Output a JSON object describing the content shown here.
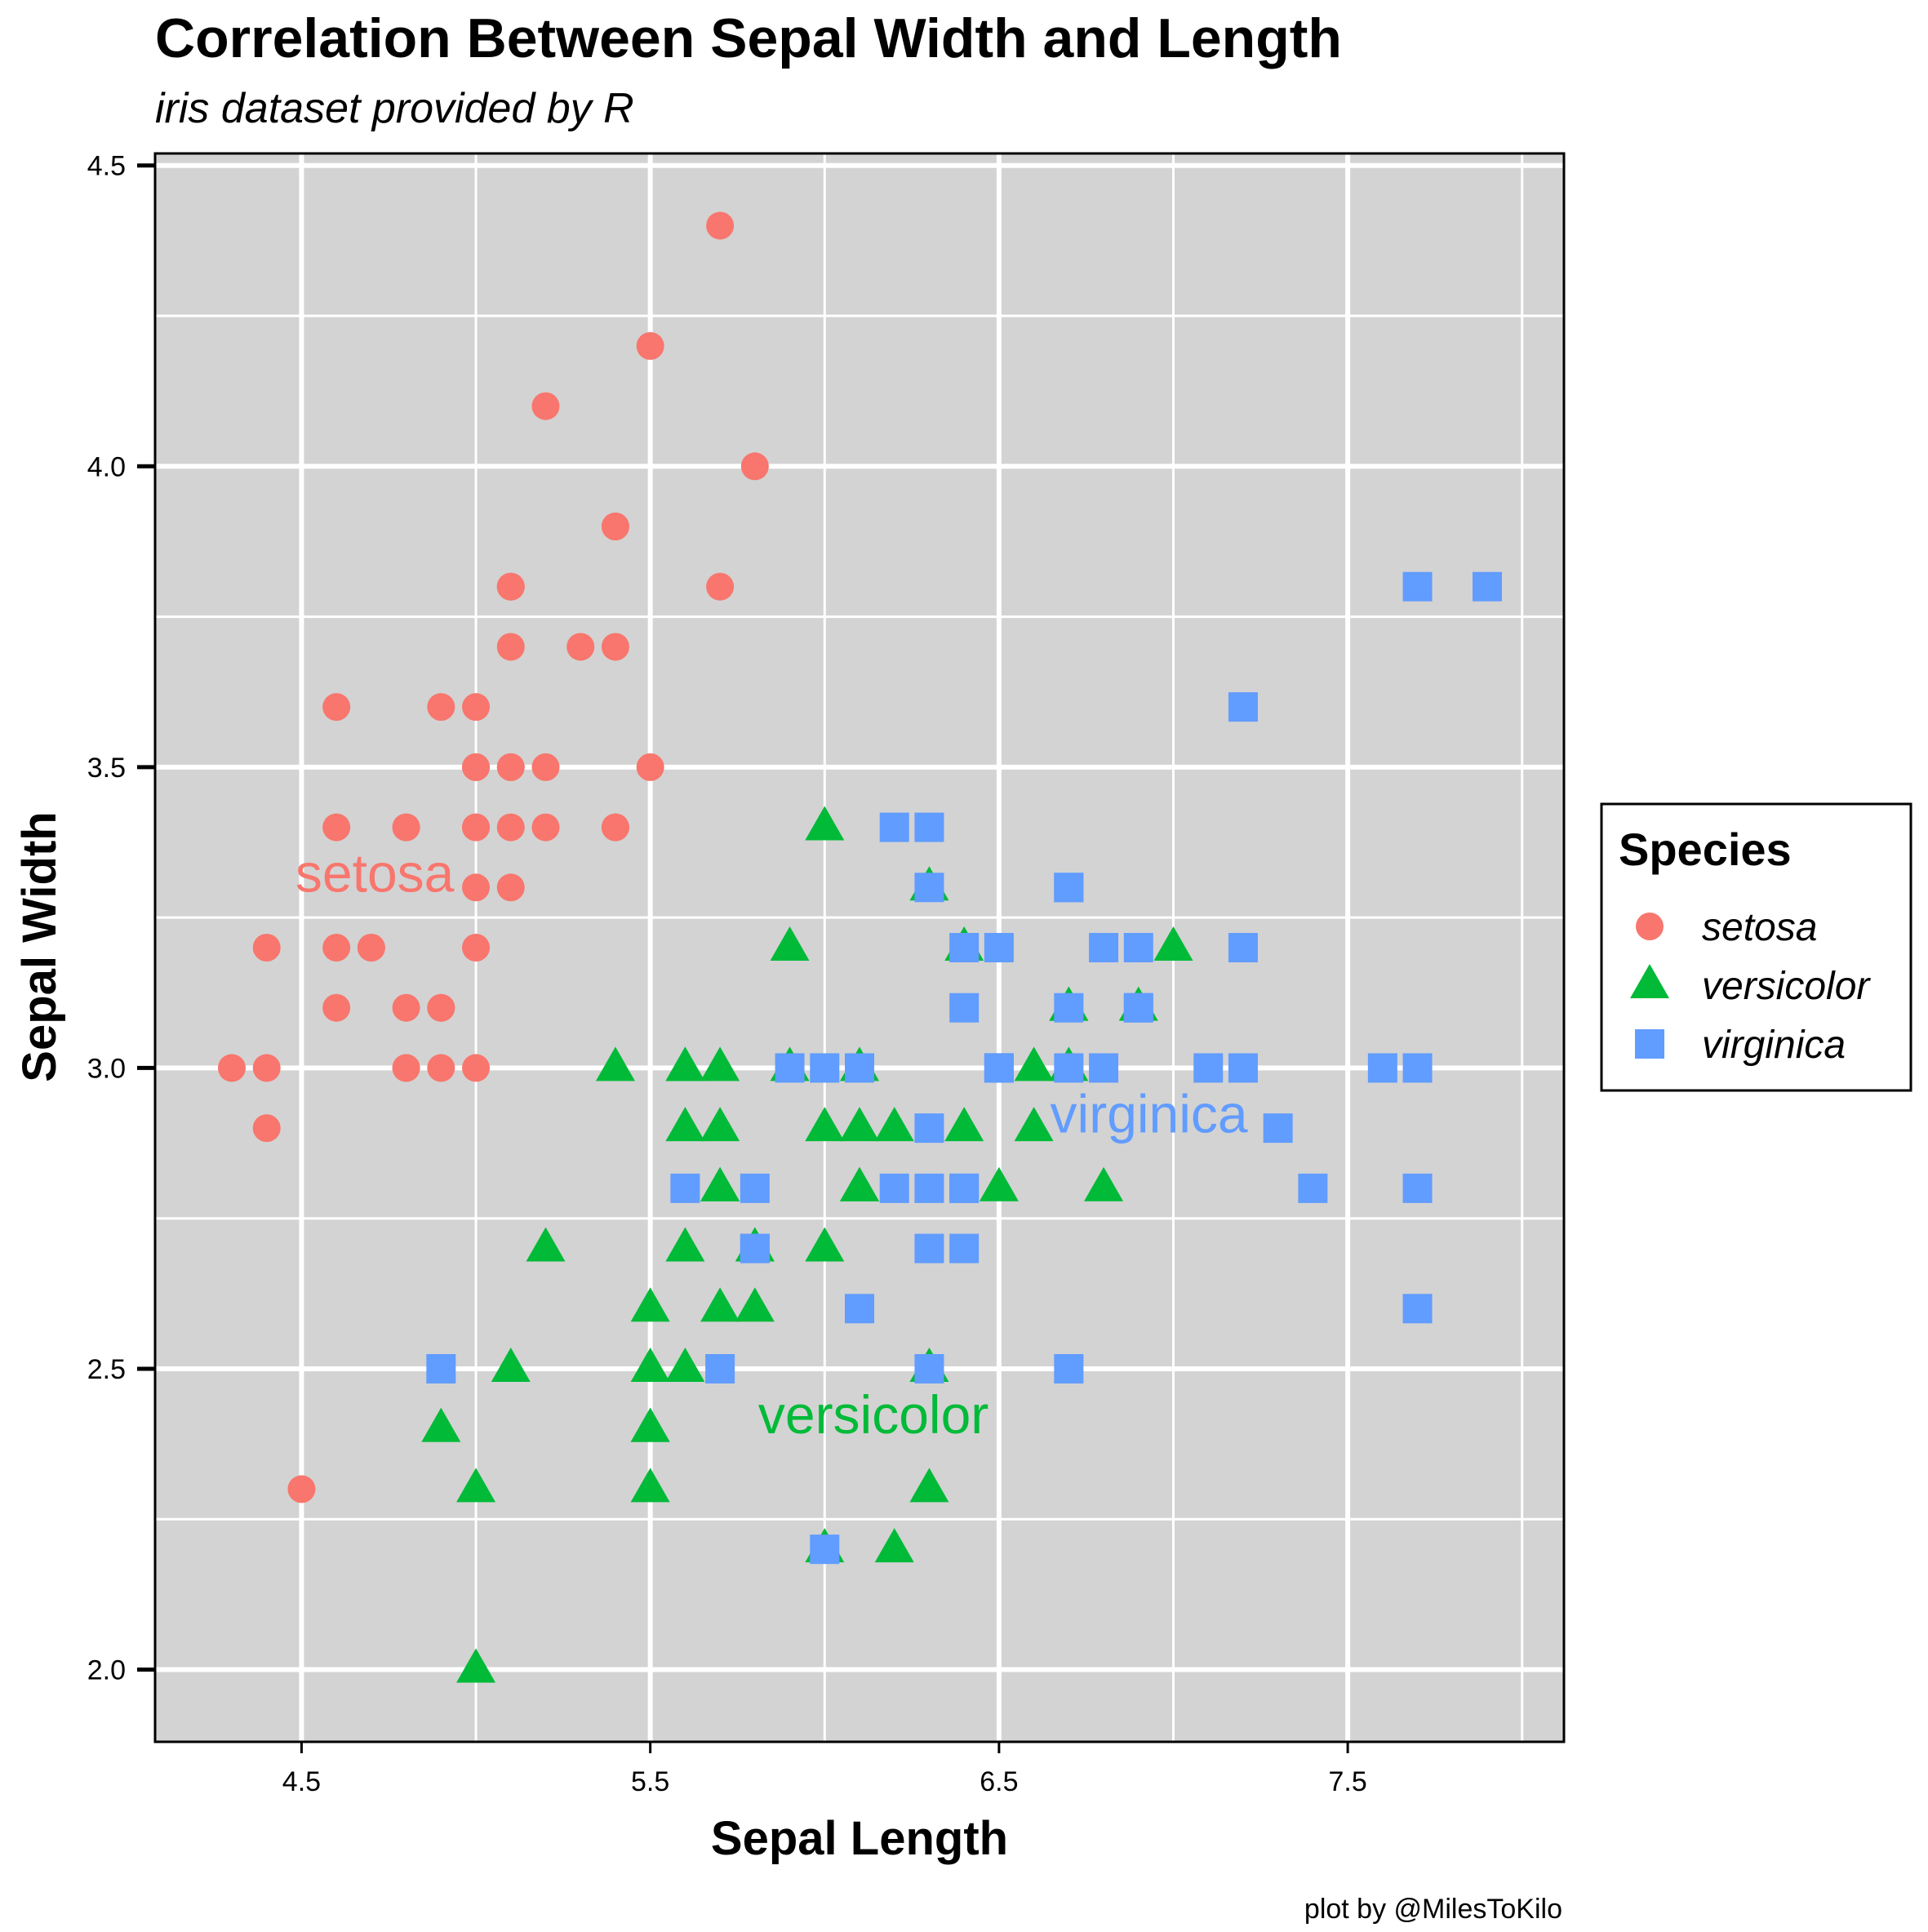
{
  "chart_data": {
    "type": "scatter",
    "title": "Correlation Between Sepal Width and Length",
    "subtitle": "iris dataset provided by R",
    "xlabel": "Sepal Length",
    "ylabel": "Sepal Width",
    "caption": "plot by @MilesToKilo",
    "xlim": [
      4.08,
      8.12
    ],
    "ylim": [
      1.88,
      4.52
    ],
    "xticks": [
      4.5,
      5.5,
      6.5,
      7.5
    ],
    "xtick_labels": [
      "4.5",
      "5.5",
      "6.5",
      "7.5"
    ],
    "yticks": [
      2.0,
      2.5,
      3.0,
      3.5,
      4.0,
      4.5
    ],
    "ytick_labels": [
      "2.0",
      "2.5",
      "3.0",
      "3.5",
      "4.0",
      "4.5"
    ],
    "grid": true,
    "panel_background": "#d3d3d3",
    "grid_color": "#ffffff",
    "legend": {
      "title": "Species",
      "placement": "right",
      "entries": [
        "setosa",
        "versicolor",
        "virginica"
      ]
    },
    "series": [
      {
        "name": "setosa",
        "color": "#f8766d",
        "shape": "circle",
        "label_text": "setosa",
        "label_pos": [
          4.71,
          3.32
        ],
        "points": [
          [
            5.1,
            3.5
          ],
          [
            4.9,
            3.0
          ],
          [
            4.7,
            3.2
          ],
          [
            4.6,
            3.1
          ],
          [
            5.0,
            3.6
          ],
          [
            5.4,
            3.9
          ],
          [
            4.6,
            3.4
          ],
          [
            5.0,
            3.4
          ],
          [
            4.4,
            2.9
          ],
          [
            4.9,
            3.1
          ],
          [
            5.4,
            3.7
          ],
          [
            4.8,
            3.4
          ],
          [
            4.8,
            3.0
          ],
          [
            4.3,
            3.0
          ],
          [
            5.8,
            4.0
          ],
          [
            5.7,
            4.4
          ],
          [
            5.4,
            3.9
          ],
          [
            5.1,
            3.5
          ],
          [
            5.7,
            3.8
          ],
          [
            5.1,
            3.8
          ],
          [
            5.4,
            3.4
          ],
          [
            5.1,
            3.7
          ],
          [
            4.6,
            3.6
          ],
          [
            5.1,
            3.3
          ],
          [
            4.8,
            3.4
          ],
          [
            5.0,
            3.0
          ],
          [
            5.0,
            3.4
          ],
          [
            5.2,
            3.5
          ],
          [
            5.2,
            3.4
          ],
          [
            4.7,
            3.2
          ],
          [
            4.8,
            3.1
          ],
          [
            5.4,
            3.4
          ],
          [
            5.2,
            4.1
          ],
          [
            5.5,
            4.2
          ],
          [
            4.9,
            3.1
          ],
          [
            5.0,
            3.2
          ],
          [
            5.5,
            3.5
          ],
          [
            4.9,
            3.6
          ],
          [
            4.4,
            3.0
          ],
          [
            5.1,
            3.4
          ],
          [
            5.0,
            3.5
          ],
          [
            4.5,
            2.3
          ],
          [
            4.4,
            3.2
          ],
          [
            5.0,
            3.5
          ],
          [
            5.1,
            3.8
          ],
          [
            4.8,
            3.0
          ],
          [
            5.1,
            3.8
          ],
          [
            4.6,
            3.2
          ],
          [
            5.3,
            3.7
          ],
          [
            5.0,
            3.3
          ]
        ]
      },
      {
        "name": "versicolor",
        "color": "#00ba38",
        "shape": "triangle",
        "label_text": "versicolor",
        "label_pos": [
          6.14,
          2.42
        ],
        "points": [
          [
            7.0,
            3.2
          ],
          [
            6.4,
            3.2
          ],
          [
            6.9,
            3.1
          ],
          [
            5.5,
            2.3
          ],
          [
            6.5,
            2.8
          ],
          [
            5.7,
            2.8
          ],
          [
            6.3,
            3.3
          ],
          [
            4.9,
            2.4
          ],
          [
            6.6,
            2.9
          ],
          [
            5.2,
            2.7
          ],
          [
            5.0,
            2.0
          ],
          [
            5.9,
            3.0
          ],
          [
            6.0,
            2.2
          ],
          [
            6.1,
            2.9
          ],
          [
            5.6,
            2.9
          ],
          [
            6.7,
            3.1
          ],
          [
            5.6,
            3.0
          ],
          [
            5.8,
            2.7
          ],
          [
            6.2,
            2.2
          ],
          [
            5.6,
            2.5
          ],
          [
            5.9,
            3.2
          ],
          [
            6.1,
            2.8
          ],
          [
            6.3,
            2.5
          ],
          [
            6.1,
            2.8
          ],
          [
            6.4,
            2.9
          ],
          [
            6.6,
            3.0
          ],
          [
            6.8,
            2.8
          ],
          [
            6.7,
            3.0
          ],
          [
            6.0,
            2.9
          ],
          [
            5.7,
            2.6
          ],
          [
            5.5,
            2.4
          ],
          [
            5.5,
            2.4
          ],
          [
            5.8,
            2.7
          ],
          [
            6.0,
            2.7
          ],
          [
            5.4,
            3.0
          ],
          [
            6.0,
            3.4
          ],
          [
            6.7,
            3.1
          ],
          [
            6.3,
            2.3
          ],
          [
            5.6,
            3.0
          ],
          [
            5.5,
            2.5
          ],
          [
            5.5,
            2.6
          ],
          [
            6.1,
            3.0
          ],
          [
            5.8,
            2.6
          ],
          [
            5.0,
            2.3
          ],
          [
            5.6,
            2.7
          ],
          [
            5.7,
            3.0
          ],
          [
            5.7,
            2.9
          ],
          [
            6.2,
            2.9
          ],
          [
            5.1,
            2.5
          ],
          [
            5.7,
            2.8
          ]
        ]
      },
      {
        "name": "virginica",
        "color": "#619cff",
        "shape": "square",
        "label_text": "virginica",
        "label_pos": [
          6.93,
          2.92
        ],
        "points": [
          [
            6.3,
            3.3
          ],
          [
            5.8,
            2.7
          ],
          [
            7.1,
            3.0
          ],
          [
            6.3,
            2.9
          ],
          [
            6.5,
            3.0
          ],
          [
            7.6,
            3.0
          ],
          [
            4.9,
            2.5
          ],
          [
            7.3,
            2.9
          ],
          [
            6.7,
            2.5
          ],
          [
            7.2,
            3.6
          ],
          [
            6.5,
            3.2
          ],
          [
            6.4,
            2.7
          ],
          [
            6.8,
            3.0
          ],
          [
            5.7,
            2.5
          ],
          [
            5.8,
            2.8
          ],
          [
            6.4,
            3.2
          ],
          [
            6.5,
            3.0
          ],
          [
            7.7,
            3.8
          ],
          [
            7.7,
            2.6
          ],
          [
            6.0,
            2.2
          ],
          [
            6.9,
            3.2
          ],
          [
            5.6,
            2.8
          ],
          [
            7.7,
            2.8
          ],
          [
            6.3,
            2.7
          ],
          [
            6.7,
            3.3
          ],
          [
            7.2,
            3.2
          ],
          [
            6.2,
            2.8
          ],
          [
            6.1,
            3.0
          ],
          [
            6.4,
            2.8
          ],
          [
            7.2,
            3.0
          ],
          [
            7.4,
            2.8
          ],
          [
            7.9,
            3.8
          ],
          [
            6.4,
            2.8
          ],
          [
            6.3,
            2.8
          ],
          [
            6.1,
            2.6
          ],
          [
            7.7,
            3.0
          ],
          [
            6.3,
            3.4
          ],
          [
            6.4,
            3.1
          ],
          [
            6.0,
            3.0
          ],
          [
            6.9,
            3.1
          ],
          [
            6.7,
            3.1
          ],
          [
            6.9,
            3.1
          ],
          [
            5.8,
            2.7
          ],
          [
            6.8,
            3.2
          ],
          [
            6.7,
            3.3
          ],
          [
            6.7,
            3.0
          ],
          [
            6.3,
            2.5
          ],
          [
            6.5,
            3.0
          ],
          [
            6.2,
            3.4
          ],
          [
            5.9,
            3.0
          ]
        ]
      }
    ]
  }
}
